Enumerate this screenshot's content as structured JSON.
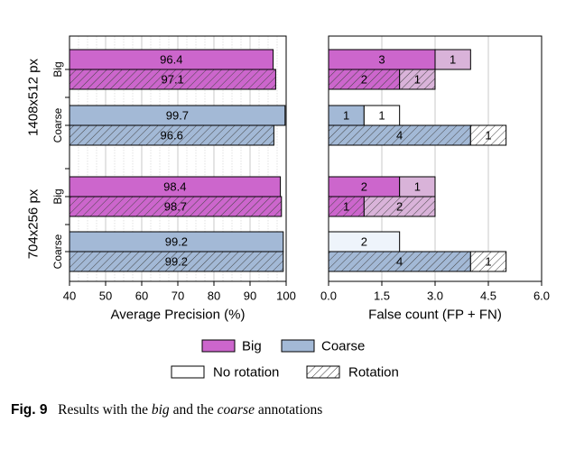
{
  "chart_data": [
    {
      "type": "bar",
      "orientation": "horizontal",
      "xlabel": "Average Precision (%)",
      "xlim": [
        40,
        100
      ],
      "xticks": [
        "40",
        "50",
        "60",
        "70",
        "80",
        "90",
        "100"
      ],
      "grid": "vertical",
      "groups": [
        {
          "name": "1408x512 px",
          "rows": [
            {
              "name": "Big",
              "bars": [
                {
                  "annotation": "Big",
                  "rotation": false,
                  "value": 96.4,
                  "label": "96.4"
                },
                {
                  "annotation": "Big",
                  "rotation": true,
                  "value": 97.1,
                  "label": "97.1"
                }
              ]
            },
            {
              "name": "Coarse",
              "bars": [
                {
                  "annotation": "Coarse",
                  "rotation": false,
                  "value": 99.7,
                  "label": "99.7"
                },
                {
                  "annotation": "Coarse",
                  "rotation": true,
                  "value": 96.6,
                  "label": "96.6"
                }
              ]
            }
          ]
        },
        {
          "name": "704x256 px",
          "rows": [
            {
              "name": "Big",
              "bars": [
                {
                  "annotation": "Big",
                  "rotation": false,
                  "value": 98.4,
                  "label": "98.4"
                },
                {
                  "annotation": "Big",
                  "rotation": true,
                  "value": 98.7,
                  "label": "98.7"
                }
              ]
            },
            {
              "name": "Coarse",
              "bars": [
                {
                  "annotation": "Coarse",
                  "rotation": false,
                  "value": 99.2,
                  "label": "99.2"
                },
                {
                  "annotation": "Coarse",
                  "rotation": true,
                  "value": 99.2,
                  "label": "99.2"
                }
              ]
            }
          ]
        }
      ]
    },
    {
      "type": "bar",
      "orientation": "horizontal",
      "stacked": true,
      "xlabel": "False count (FP + FN)",
      "xlim": [
        0,
        6
      ],
      "xticks": [
        "0.0",
        "1.5",
        "3.0",
        "4.5",
        "6.0"
      ],
      "grid": "vertical",
      "groups": [
        {
          "name": "1408x512 px",
          "rows": [
            {
              "name": "Big",
              "bars": [
                {
                  "annotation": "Big",
                  "rotation": false,
                  "segments": [
                    {
                      "part": "primary",
                      "value": 3,
                      "label": "3"
                    },
                    {
                      "part": "secondary",
                      "value": 1,
                      "label": "1"
                    }
                  ]
                },
                {
                  "annotation": "Big",
                  "rotation": true,
                  "segments": [
                    {
                      "part": "primary",
                      "value": 2,
                      "label": "2"
                    },
                    {
                      "part": "secondary",
                      "value": 1,
                      "label": "1"
                    }
                  ]
                }
              ]
            },
            {
              "name": "Coarse",
              "bars": [
                {
                  "annotation": "Coarse",
                  "rotation": false,
                  "segments": [
                    {
                      "part": "primary",
                      "value": 1,
                      "label": "1"
                    },
                    {
                      "part": "secondary",
                      "value": 1,
                      "label": "1"
                    }
                  ]
                },
                {
                  "annotation": "Coarse",
                  "rotation": true,
                  "segments": [
                    {
                      "part": "primary",
                      "value": 4,
                      "label": "4"
                    },
                    {
                      "part": "secondary",
                      "value": 1,
                      "label": "1"
                    }
                  ]
                }
              ]
            }
          ]
        },
        {
          "name": "704x256 px",
          "rows": [
            {
              "name": "Big",
              "bars": [
                {
                  "annotation": "Big",
                  "rotation": false,
                  "segments": [
                    {
                      "part": "primary",
                      "value": 2,
                      "label": "2"
                    },
                    {
                      "part": "secondary",
                      "value": 1,
                      "label": "1"
                    }
                  ]
                },
                {
                  "annotation": "Big",
                  "rotation": true,
                  "segments": [
                    {
                      "part": "primary",
                      "value": 1,
                      "label": "1"
                    },
                    {
                      "part": "secondary",
                      "value": 2,
                      "label": "2"
                    }
                  ]
                }
              ]
            },
            {
              "name": "Coarse",
              "bars": [
                {
                  "annotation": "Coarse",
                  "rotation": false,
                  "segments": [
                    {
                      "part": "none",
                      "value": 2,
                      "label": "2"
                    }
                  ]
                },
                {
                  "annotation": "Coarse",
                  "rotation": true,
                  "segments": [
                    {
                      "part": "primary",
                      "value": 4,
                      "label": "4"
                    },
                    {
                      "part": "secondary",
                      "value": 1,
                      "label": "1"
                    }
                  ]
                }
              ]
            }
          ]
        }
      ]
    }
  ],
  "legend": {
    "row1": [
      {
        "key": "Big",
        "label": "Big"
      },
      {
        "key": "Coarse",
        "label": "Coarse"
      }
    ],
    "row2": [
      {
        "key": "norot",
        "label": "No rotation"
      },
      {
        "key": "rot",
        "label": "Rotation"
      }
    ]
  },
  "caption": {
    "label": "Fig. 9",
    "text_before": "Results with the",
    "em1": "big",
    "text_middle": "and the",
    "em2": "coarse",
    "text_after": "annotations"
  },
  "colors": {
    "Big": "#cc66cc",
    "Big_secondary": "#d9b3d9",
    "Coarse": "#a3b9d6",
    "Coarse_none": "#eef4fb",
    "no_rotation": "#ffffff",
    "grid": "#bbbbbb"
  }
}
